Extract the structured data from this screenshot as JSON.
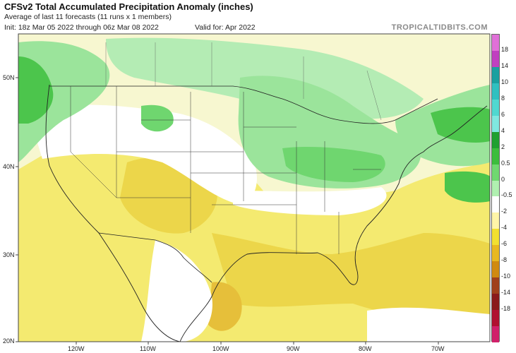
{
  "header": {
    "title": "CFSv2 Total Accumulated Precipitation Anomaly (inches)",
    "subtitle": "Average of last 11 forecasts (11 runs x 1 members)",
    "init": "Init: 18z Mar 05 2022 through 06z Mar 08 2022",
    "valid": "Valid for: Apr 2022",
    "brand": "TROPICALTIDBITS.COM"
  },
  "colorbar": {
    "labels": [
      "18",
      "14",
      "10",
      "8",
      "6",
      "4",
      "2",
      "0.5",
      "0",
      "-0.5",
      "-2",
      "-4",
      "-6",
      "-8",
      "-10",
      "-14",
      "-18"
    ],
    "colors": [
      "#e070d8",
      "#c040c0",
      "#1aa0a0",
      "#30c0c0",
      "#50d8d0",
      "#80e8e0",
      "#20a030",
      "#3cbd3c",
      "#70d870",
      "#b0f0b0",
      "#ffffff",
      "#fff5a8",
      "#f2e030",
      "#e8b820",
      "#d08a10",
      "#a0401a",
      "#8a1a1a",
      "#b01030",
      "#d0206a"
    ]
  },
  "axes": {
    "lat_labels": [
      "50N",
      "40N",
      "30N",
      "20N"
    ],
    "lon_labels": [
      "120W",
      "110W",
      "100W",
      "90W",
      "80W",
      "70W"
    ]
  }
}
